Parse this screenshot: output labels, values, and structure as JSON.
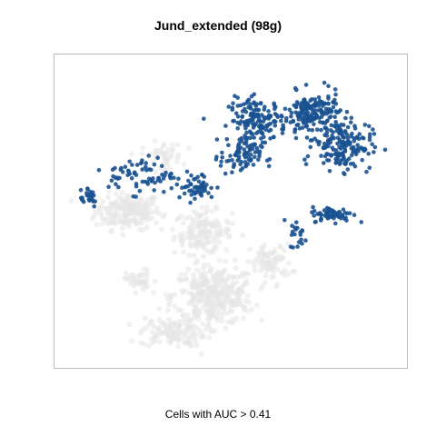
{
  "chart_data": {
    "type": "scatter",
    "title": "Jund_extended (98g)",
    "xlabel": "Cells with AUC > 0.41",
    "ylabel": "",
    "axes_visible": false,
    "grid": false,
    "legend": "none",
    "highlight_color": "#1a5291",
    "background_color": "#e6e6e6",
    "series": [
      {
        "role": "cells-above-threshold",
        "clusters": [
          {
            "center": [
              0.58,
              0.8
            ],
            "spread": [
              0.07,
              0.06
            ],
            "n": 150
          },
          {
            "center": [
              0.74,
              0.82
            ],
            "spread": [
              0.07,
              0.06
            ],
            "n": 180
          },
          {
            "center": [
              0.83,
              0.72
            ],
            "spread": [
              0.07,
              0.07
            ],
            "n": 170
          },
          {
            "center": [
              0.53,
              0.68
            ],
            "spread": [
              0.05,
              0.05
            ],
            "n": 80
          },
          {
            "center": [
              0.4,
              0.58
            ],
            "spread": [
              0.05,
              0.04
            ],
            "n": 55
          },
          {
            "center": [
              0.24,
              0.62
            ],
            "spread": [
              0.08,
              0.05
            ],
            "n": 70
          },
          {
            "center": [
              0.08,
              0.55
            ],
            "spread": [
              0.03,
              0.03
            ],
            "n": 25
          },
          {
            "center": [
              0.8,
              0.49
            ],
            "spread": [
              0.05,
              0.02
            ],
            "n": 70
          },
          {
            "center": [
              0.7,
              0.42
            ],
            "spread": [
              0.02,
              0.04
            ],
            "n": 20
          }
        ]
      },
      {
        "role": "other-cells",
        "clusters": [
          {
            "center": [
              0.2,
              0.5
            ],
            "spread": [
              0.08,
              0.05
            ],
            "n": 200
          },
          {
            "center": [
              0.42,
              0.43
            ],
            "spread": [
              0.07,
              0.06
            ],
            "n": 150
          },
          {
            "center": [
              0.45,
              0.22
            ],
            "spread": [
              0.1,
              0.08
            ],
            "n": 350
          },
          {
            "center": [
              0.33,
              0.1
            ],
            "spread": [
              0.08,
              0.04
            ],
            "n": 120
          },
          {
            "center": [
              0.23,
              0.27
            ],
            "spread": [
              0.03,
              0.03
            ],
            "n": 40
          },
          {
            "center": [
              0.62,
              0.33
            ],
            "spread": [
              0.05,
              0.05
            ],
            "n": 80
          },
          {
            "center": [
              0.3,
              0.68
            ],
            "spread": [
              0.05,
              0.04
            ],
            "n": 50
          }
        ]
      }
    ]
  }
}
